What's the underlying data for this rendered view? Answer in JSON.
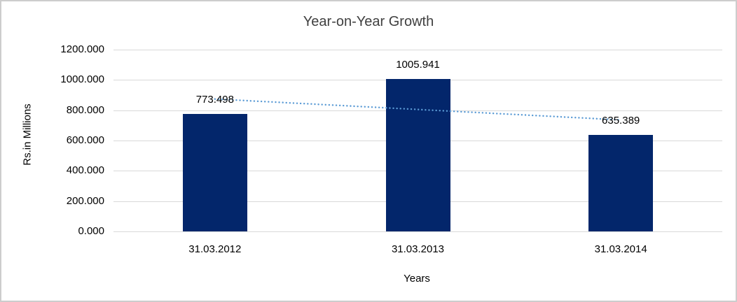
{
  "chart_data": {
    "type": "bar",
    "title": "Year-on-Year Growth",
    "xlabel": "Years",
    "ylabel": "Rs.in Millions",
    "categories": [
      "31.03.2012",
      "31.03.2013",
      "31.03.2014"
    ],
    "values": [
      773.498,
      1005.941,
      635.389
    ],
    "data_labels": [
      "773.498",
      "1005.941",
      "635.389"
    ],
    "y_ticks": [
      {
        "value": 0,
        "label": "0.000"
      },
      {
        "value": 200,
        "label": "200.000"
      },
      {
        "value": 400,
        "label": "400.000"
      },
      {
        "value": 600,
        "label": "600.000"
      },
      {
        "value": 800,
        "label": "800.000"
      },
      {
        "value": 1000,
        "label": "1000.000"
      },
      {
        "value": 1200,
        "label": "1200.000"
      }
    ],
    "ylim": [
      0,
      1200
    ],
    "grid": true,
    "legend": "none",
    "bar_color": "#03266b",
    "gridline_color": "#d9d9d9",
    "trendline": {
      "type": "linear",
      "style": "dotted",
      "color": "#5b9bd5",
      "start_value": 874,
      "end_value": 736
    }
  }
}
